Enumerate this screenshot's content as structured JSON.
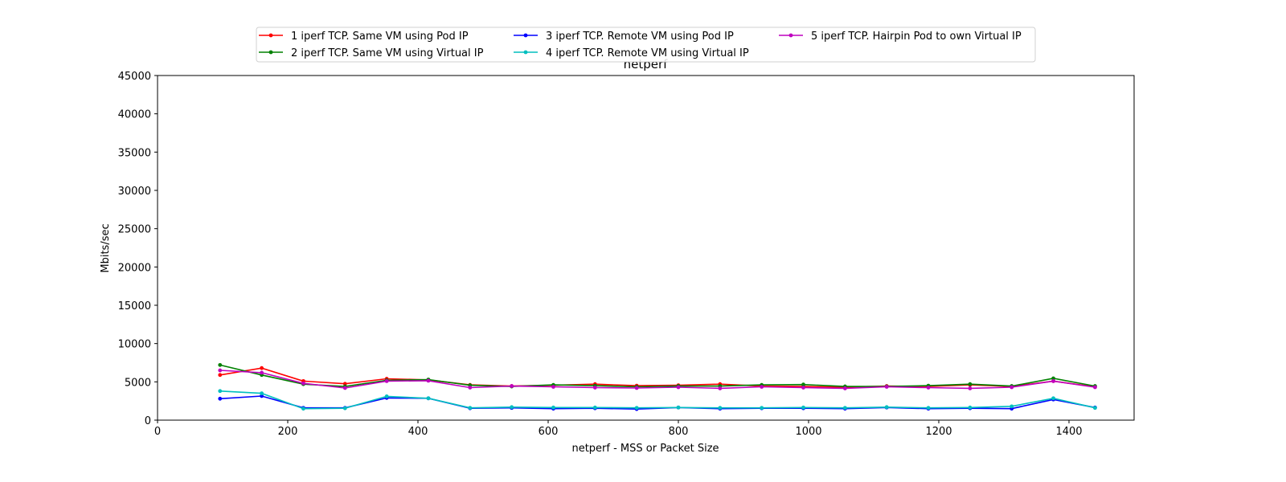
{
  "chart_data": {
    "type": "line",
    "title": "netperf",
    "xlabel": "netperf - MSS or Packet Size",
    "ylabel": "Mbits/sec",
    "xlim": [
      0,
      1500
    ],
    "ylim": [
      0,
      45000
    ],
    "xticks": [
      0,
      200,
      400,
      600,
      800,
      1000,
      1200,
      1400
    ],
    "yticks": [
      0,
      5000,
      10000,
      15000,
      20000,
      25000,
      30000,
      35000,
      40000,
      45000
    ],
    "grid": false,
    "legend_position": "top-center",
    "x": [
      96,
      160,
      224,
      288,
      352,
      416,
      480,
      544,
      608,
      672,
      736,
      800,
      864,
      928,
      992,
      1056,
      1120,
      1184,
      1248,
      1312,
      1376,
      1440
    ],
    "series": [
      {
        "name": "1 iperf TCP. Same VM using Pod IP",
        "color": "#ff0000",
        "values": [
          5900,
          6800,
          5100,
          4750,
          5400,
          5250,
          4600,
          4450,
          4550,
          4700,
          4500,
          4550,
          4700,
          4450,
          4400,
          4300,
          4450,
          4400,
          4600,
          4400,
          5100,
          4350
        ]
      },
      {
        "name": "2 iperf TCP. Same VM using Virtual IP",
        "color": "#008000",
        "values": [
          7200,
          5900,
          4700,
          4400,
          5200,
          5300,
          4550,
          4400,
          4600,
          4500,
          4350,
          4450,
          4450,
          4600,
          4650,
          4400,
          4400,
          4500,
          4700,
          4450,
          5450,
          4450
        ]
      },
      {
        "name": "3 iperf TCP. Remote VM using Pod IP",
        "color": "#0000ff",
        "values": [
          2800,
          3150,
          1600,
          1600,
          2900,
          2850,
          1550,
          1600,
          1500,
          1550,
          1450,
          1650,
          1500,
          1550,
          1550,
          1500,
          1650,
          1500,
          1550,
          1500,
          2700,
          1650
        ]
      },
      {
        "name": "4 iperf TCP. Remote VM using Virtual IP",
        "color": "#00bfbf",
        "values": [
          3800,
          3500,
          1500,
          1550,
          3100,
          2850,
          1600,
          1700,
          1650,
          1650,
          1600,
          1650,
          1600,
          1600,
          1650,
          1600,
          1700,
          1600,
          1650,
          1800,
          2850,
          1600
        ]
      },
      {
        "name": "5 iperf TCP. Hairpin Pod to own Virtual IP",
        "color": "#bf00bf",
        "values": [
          6500,
          6200,
          4800,
          4200,
          5100,
          5150,
          4250,
          4450,
          4350,
          4250,
          4200,
          4300,
          4150,
          4350,
          4250,
          4150,
          4350,
          4250,
          4150,
          4300,
          5100,
          4300
        ]
      }
    ]
  }
}
